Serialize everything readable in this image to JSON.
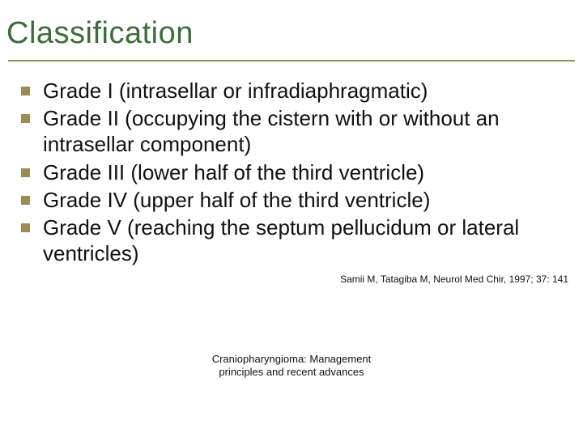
{
  "title": "Classification",
  "items": [
    "Grade I (intrasellar or infradiaphragmatic)",
    "Grade II (occupying the cistern with or without an intrasellar component)",
    "Grade III (lower half of the third ventricle)",
    "Grade IV (upper half of the  third ventricle)",
    "Grade V (reaching the septum pellucidum or lateral ventricles)"
  ],
  "citation": "Samii M, Tatagiba M, Neurol Med Chir, 1997; 37: 141",
  "footer_line1": "Craniopharyngioma: Management",
  "footer_line2": "principles and recent advances",
  "colors": {
    "title": "#3e6b3a",
    "rule": "#998c56",
    "bullet": "#998c56",
    "text": "#111111",
    "background": "#ffffff"
  },
  "typography": {
    "title_fontsize": 38,
    "body_fontsize": 26,
    "citation_fontsize": 12,
    "footer_fontsize": 13
  }
}
